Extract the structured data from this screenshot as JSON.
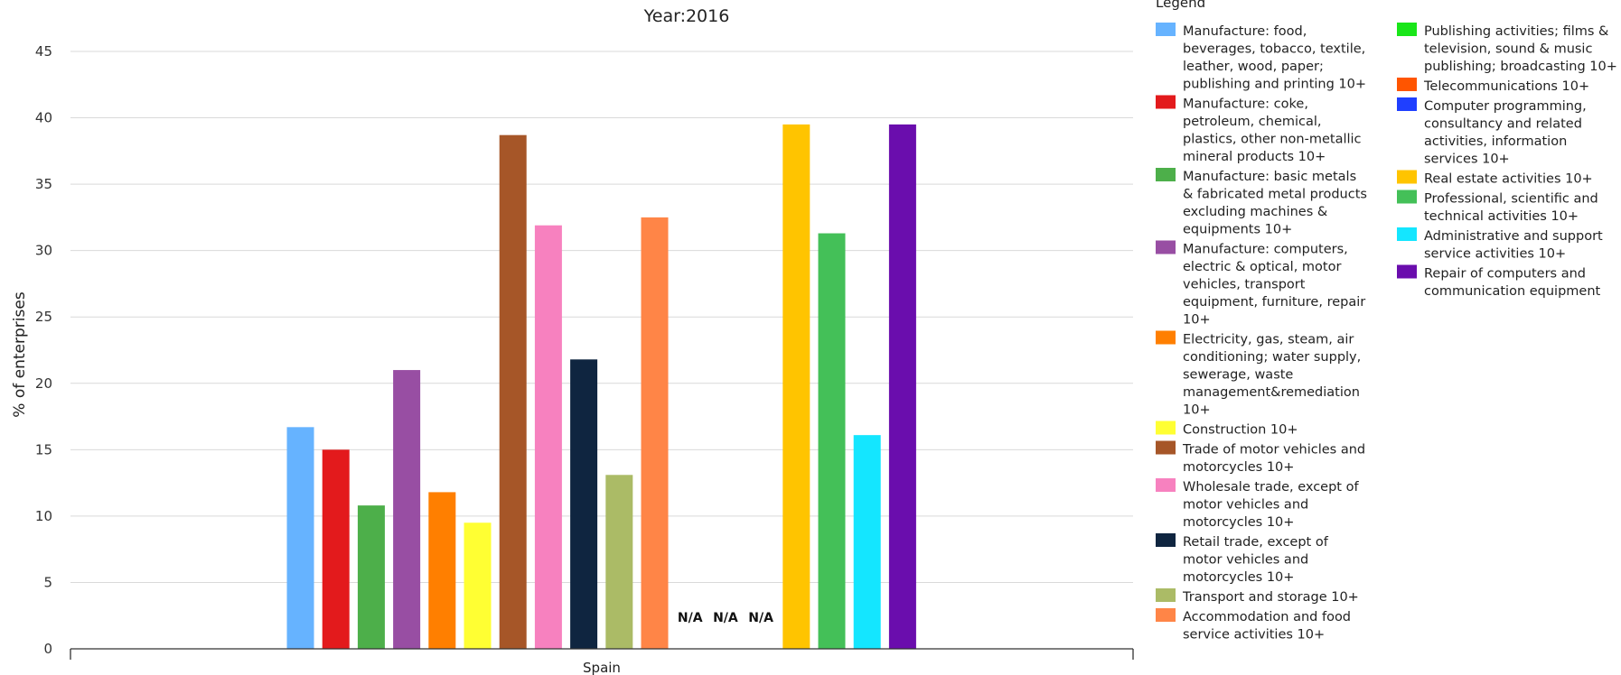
{
  "chart_data": {
    "type": "bar",
    "title": "Year:2016",
    "ylabel": "% of enterprises",
    "xlabel": "",
    "categories": [
      "Spain"
    ],
    "ylim": [
      0,
      45
    ],
    "yticks": [
      0,
      5,
      10,
      15,
      20,
      25,
      30,
      35,
      40,
      45
    ],
    "grid": true,
    "legend_title": "Legend",
    "legend_position": "right",
    "na_text": "N/A",
    "series": [
      {
        "name": "Manufacture: food, beverages, tobacco, textile, leather, wood, paper; publishing and printing 10+",
        "color": "#66b3ff",
        "values": [
          16.7
        ]
      },
      {
        "name": "Manufacture: coke, petroleum, chemical, plastics, other non-metallic mineral products 10+",
        "color": "#e31a1c",
        "values": [
          15.0
        ]
      },
      {
        "name": "Manufacture: basic metals & fabricated metal products excluding machines & equipments 10+",
        "color": "#4daf4a",
        "values": [
          10.8
        ]
      },
      {
        "name": "Manufacture: computers, electric & optical, motor vehicles, transport equipment, furniture, repair 10+",
        "color": "#984ea3",
        "values": [
          21.0
        ]
      },
      {
        "name": "Electricity, gas, steam, air conditioning; water supply, sewerage, waste management&remediation 10+",
        "color": "#ff7f00",
        "values": [
          11.8
        ]
      },
      {
        "name": "Construction 10+",
        "color": "#ffff33",
        "values": [
          9.5
        ]
      },
      {
        "name": "Trade of motor vehicles and motorcycles 10+",
        "color": "#a65628",
        "values": [
          38.7
        ]
      },
      {
        "name": "Wholesale trade, except of motor vehicles and motorcycles 10+",
        "color": "#f781bf",
        "values": [
          31.9
        ]
      },
      {
        "name": "Retail trade, except of motor vehicles and motorcycles 10+",
        "color": "#0f2540",
        "values": [
          21.8
        ]
      },
      {
        "name": "Transport and storage 10+",
        "color": "#abbb66",
        "values": [
          13.1
        ]
      },
      {
        "name": "Accommodation and food service activities 10+",
        "color": "#ff8547",
        "values": [
          32.5
        ]
      },
      {
        "name": "Publishing activities; films & television, sound & music publishing; broadcasting 10+",
        "color": "#19e619",
        "values": [
          null
        ]
      },
      {
        "name": "Telecommunications 10+",
        "color": "#ff5500",
        "values": [
          null
        ]
      },
      {
        "name": "Computer programming, consultancy and related activities, information services 10+",
        "color": "#1f3fff",
        "values": [
          null
        ]
      },
      {
        "name": "Real estate activities 10+",
        "color": "#ffc400",
        "values": [
          39.5
        ]
      },
      {
        "name": "Professional, scientific and technical activities 10+",
        "color": "#44c058",
        "values": [
          31.3
        ]
      },
      {
        "name": "Administrative and support service activities 10+",
        "color": "#14e6ff",
        "values": [
          16.1
        ]
      },
      {
        "name": "Repair of computers and communication equipment",
        "color": "#6a0dad",
        "values": [
          39.5
        ]
      }
    ]
  }
}
